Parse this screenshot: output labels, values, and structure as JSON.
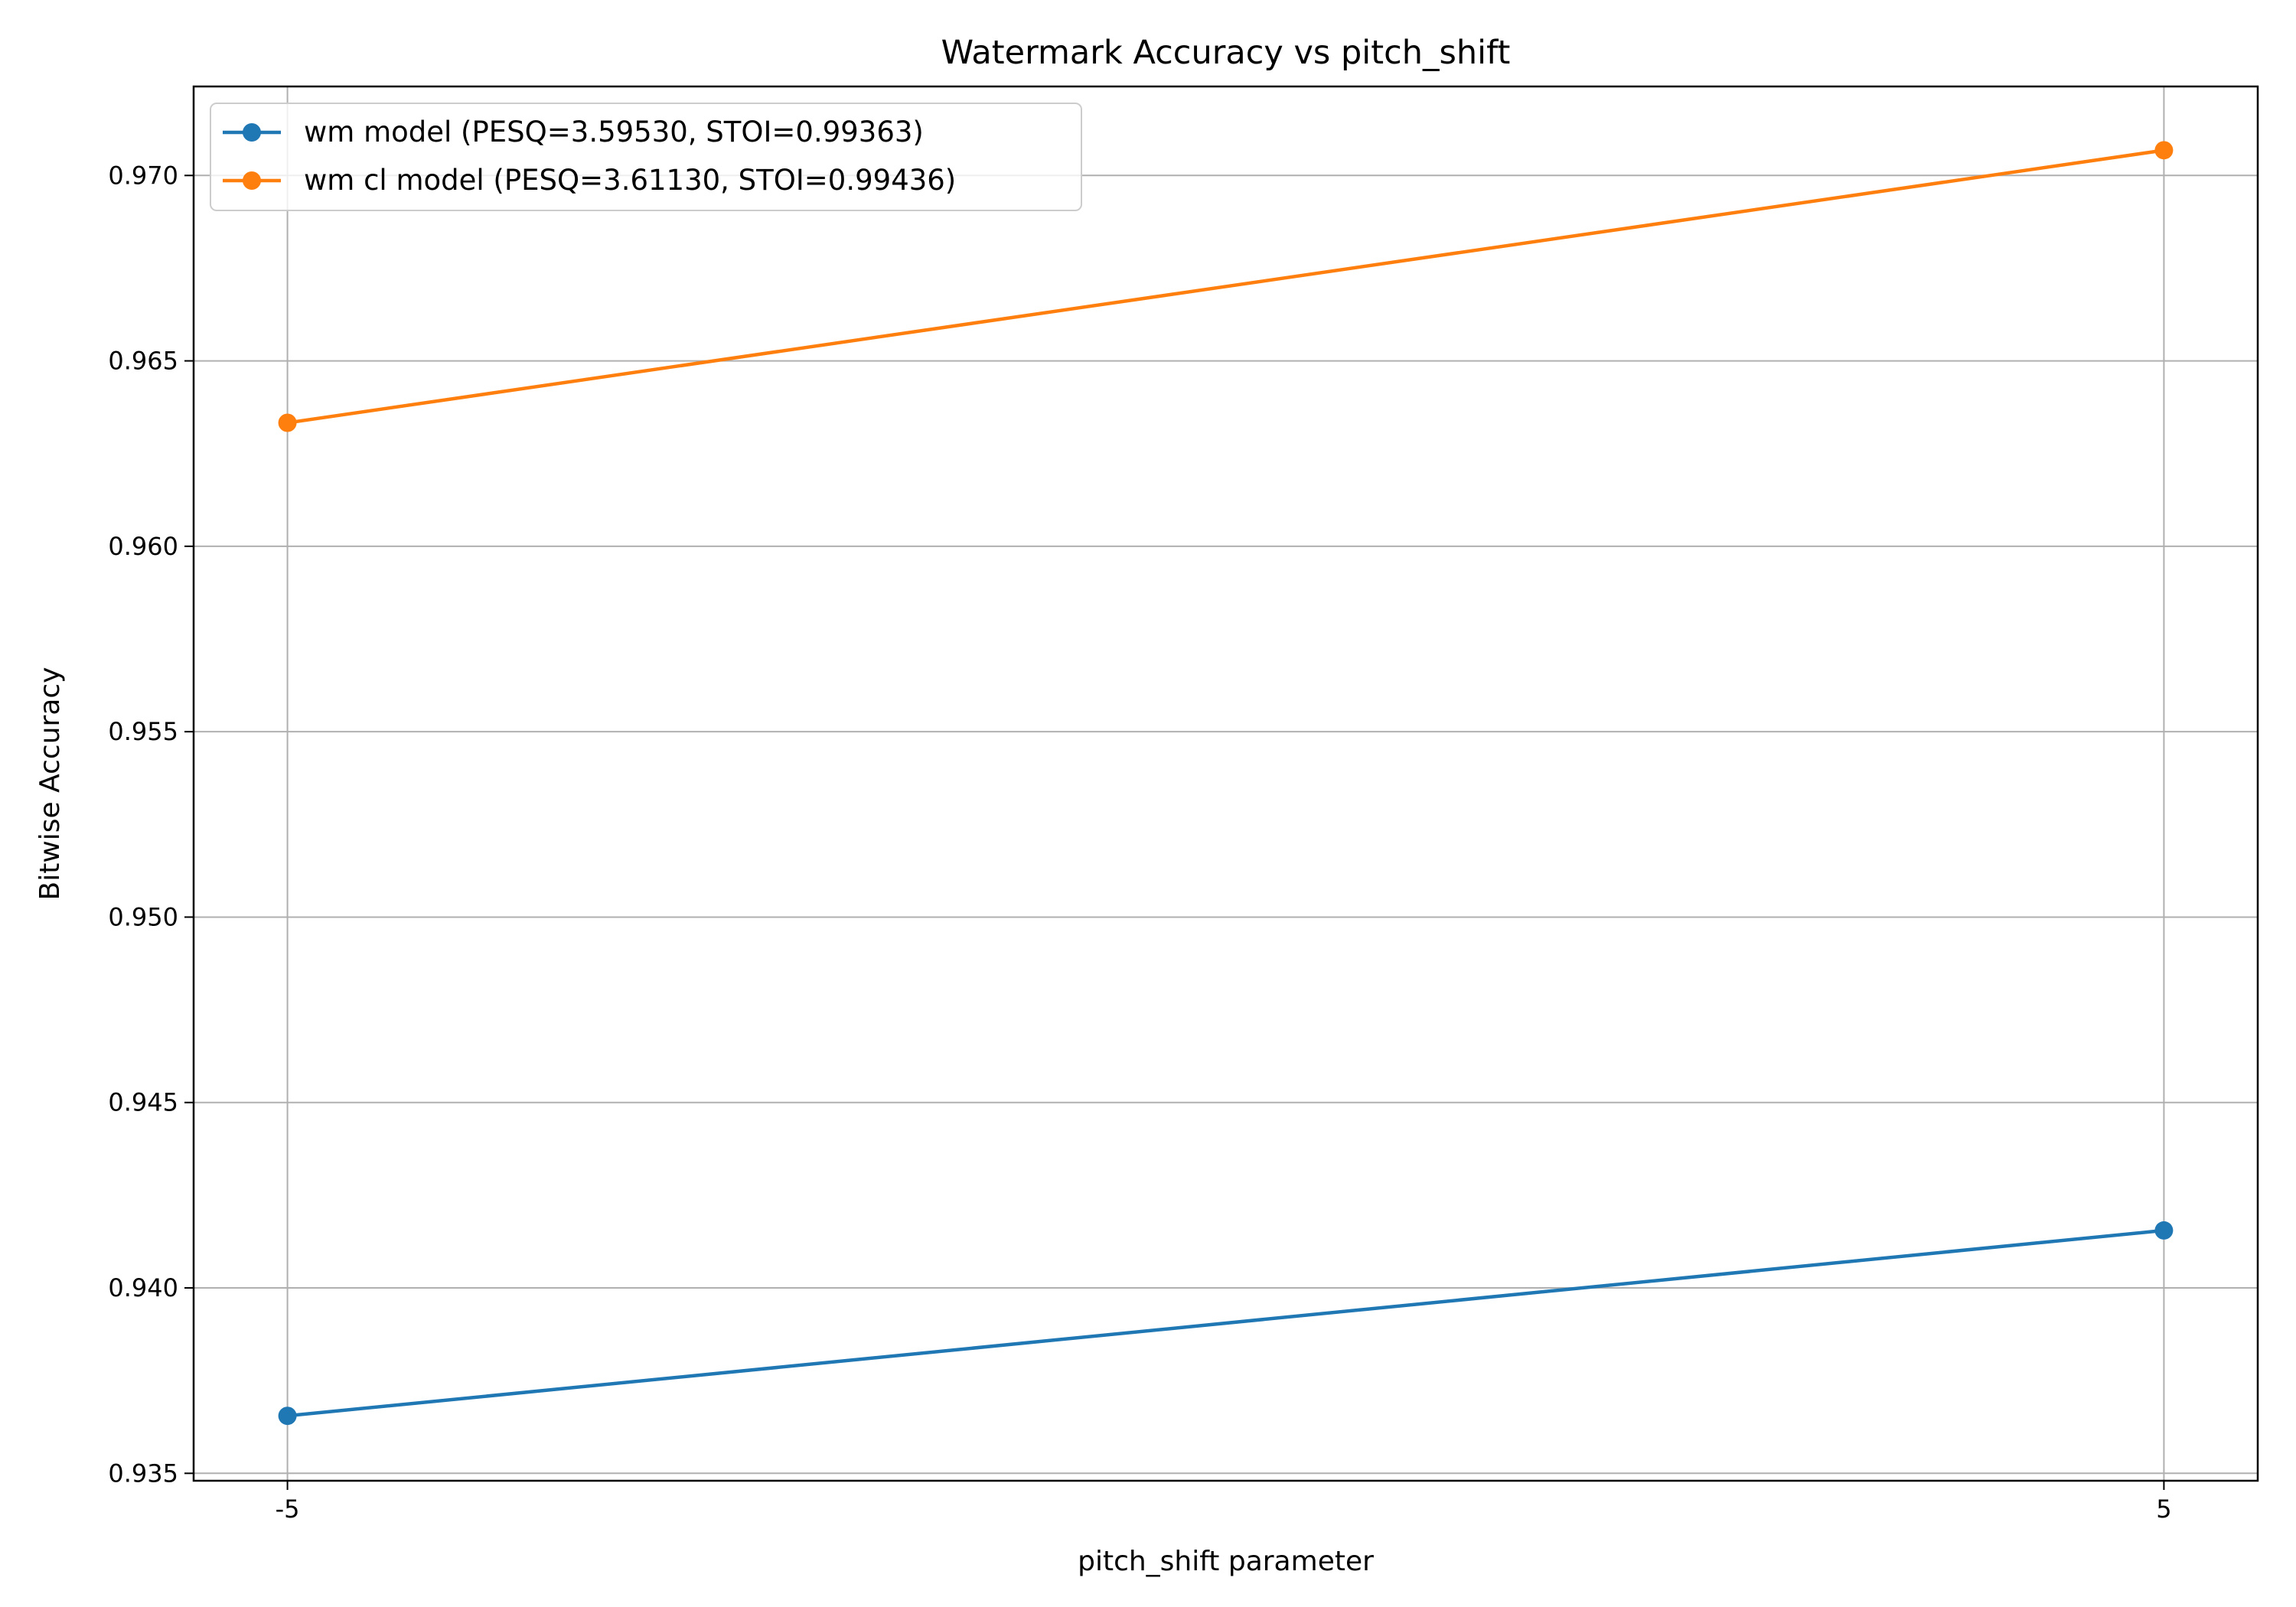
{
  "chart_data": {
    "type": "line",
    "title": "Watermark Accuracy vs pitch_shift",
    "xlabel": "pitch_shift parameter",
    "ylabel": "Bitwise Accuracy",
    "x": [
      -5,
      5
    ],
    "x_tick_labels": [
      "-5",
      "5"
    ],
    "xlim": [
      -5.5,
      5.5
    ],
    "ylim": [
      0.9348,
      0.9724
    ],
    "y_ticks": [
      0.935,
      0.94,
      0.945,
      0.95,
      0.955,
      0.96,
      0.965,
      0.97
    ],
    "y_tick_labels": [
      "0.935",
      "0.940",
      "0.945",
      "0.950",
      "0.955",
      "0.960",
      "0.965",
      "0.970"
    ],
    "grid": true,
    "legend_position": "top-left",
    "series": [
      {
        "name": "wm model (PESQ=3.59530, STOI=0.99363)",
        "color": "#1f77b4",
        "marker": "circle",
        "values": [
          0.93655,
          0.94155
        ]
      },
      {
        "name": "wm cl model (PESQ=3.61130, STOI=0.99436)",
        "color": "#ff7f0e",
        "marker": "circle",
        "values": [
          0.96333,
          0.97068
        ]
      }
    ]
  }
}
